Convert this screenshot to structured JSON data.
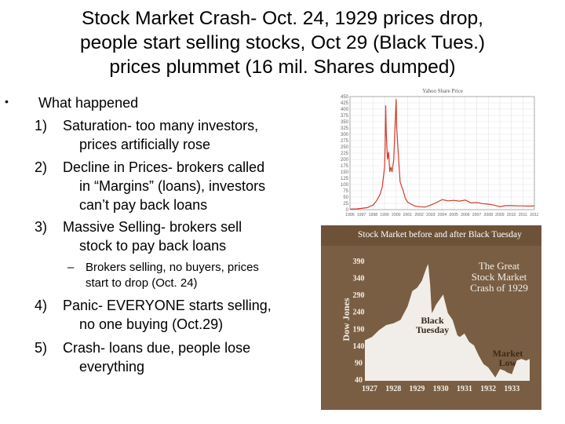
{
  "title": {
    "line1": "Stock Market Crash- Oct. 24, 1929 prices drop,",
    "line2": "people start selling stocks, Oct 29 (Black Tues.)",
    "line3": "prices plummet (16 mil. Shares dumped)"
  },
  "body": {
    "bullet_symbol": "•",
    "heading": "What happened",
    "items": [
      {
        "num": "1)",
        "lines": [
          "Saturation- too many investors,",
          "prices artificially rose"
        ]
      },
      {
        "num": "2)",
        "lines": [
          "Decline in Prices- brokers called",
          "in “Margins” (loans), investors",
          "can’t pay back loans"
        ]
      },
      {
        "num": "3)",
        "lines": [
          "Massive Selling- brokers sell",
          "stock to pay back loans"
        ]
      },
      {
        "num": "4)",
        "lines": [
          "Panic- EVERYONE starts selling,",
          "no one buying (Oct.29)"
        ]
      },
      {
        "num": "5)",
        "lines": [
          "Crash- loans due, people lose",
          "everything"
        ]
      }
    ],
    "sub_item": {
      "dash": "–",
      "lines": [
        "Brokers selling, no buyers, prices",
        "start to drop (Oct. 24)"
      ]
    }
  },
  "chart_data": [
    {
      "type": "line",
      "title": "Yahoo Share Price",
      "x": [
        "1996",
        "1997",
        "1998",
        "1999",
        "2000",
        "2001",
        "2002",
        "2003",
        "2004",
        "2005",
        "2006",
        "2007",
        "2008",
        "2009",
        "2010",
        "2011",
        "2012"
      ],
      "ylim": [
        0,
        450
      ],
      "yticks": [
        0,
        25,
        50,
        75,
        100,
        125,
        150,
        175,
        200,
        225,
        250,
        275,
        300,
        325,
        350,
        375,
        400,
        425,
        450
      ],
      "series": [
        {
          "color": "#d23c28",
          "points": [
            [
              1996.0,
              2
            ],
            [
              1996.6,
              3
            ],
            [
              1997.0,
              5
            ],
            [
              1997.5,
              8
            ],
            [
              1998.0,
              18
            ],
            [
              1998.3,
              35
            ],
            [
              1998.6,
              60
            ],
            [
              1998.8,
              90
            ],
            [
              1999.0,
              170
            ],
            [
              1999.05,
              250
            ],
            [
              1999.1,
              415
            ],
            [
              1999.15,
              300
            ],
            [
              1999.25,
              200
            ],
            [
              1999.35,
              230
            ],
            [
              1999.45,
              150
            ],
            [
              1999.55,
              170
            ],
            [
              1999.65,
              150
            ],
            [
              1999.8,
              200
            ],
            [
              1999.92,
              350
            ],
            [
              2000.0,
              440
            ],
            [
              2000.05,
              330
            ],
            [
              2000.15,
              250
            ],
            [
              2000.25,
              180
            ],
            [
              2000.35,
              110
            ],
            [
              2000.5,
              90
            ],
            [
              2000.65,
              70
            ],
            [
              2000.8,
              45
            ],
            [
              2001.0,
              30
            ],
            [
              2001.3,
              22
            ],
            [
              2001.6,
              15
            ],
            [
              2002.0,
              12
            ],
            [
              2002.5,
              10
            ],
            [
              2003.0,
              18
            ],
            [
              2003.5,
              28
            ],
            [
              2004.0,
              40
            ],
            [
              2004.5,
              35
            ],
            [
              2005.0,
              37
            ],
            [
              2005.5,
              34
            ],
            [
              2006.0,
              38
            ],
            [
              2006.5,
              27
            ],
            [
              2007.0,
              28
            ],
            [
              2007.5,
              24
            ],
            [
              2008.0,
              22
            ],
            [
              2008.5,
              18
            ],
            [
              2009.0,
              12
            ],
            [
              2009.5,
              16
            ],
            [
              2010.0,
              16
            ],
            [
              2010.5,
              15
            ],
            [
              2011.0,
              15
            ],
            [
              2011.5,
              14
            ],
            [
              2012.0,
              15
            ]
          ]
        }
      ]
    },
    {
      "type": "area",
      "title": "Stock Market before and after Black Tuesday",
      "ylabel": "Dow Jones",
      "x": [
        "1927",
        "1928",
        "1929",
        "1930",
        "1931",
        "1932",
        "1933"
      ],
      "ylim": [
        40,
        390
      ],
      "yticks": [
        40,
        90,
        140,
        190,
        240,
        290,
        340,
        390
      ],
      "annotations": [
        "The Great",
        "Stock Market",
        "Crash of 1929",
        "Black",
        "Tuesday",
        "Market",
        "Low"
      ],
      "series": [
        {
          "color": "#f1eee9",
          "points": [
            [
              1927.0,
              155
            ],
            [
              1927.3,
              165
            ],
            [
              1927.6,
              185
            ],
            [
              1927.9,
              200
            ],
            [
              1928.2,
              205
            ],
            [
              1928.5,
              215
            ],
            [
              1928.8,
              255
            ],
            [
              1929.0,
              300
            ],
            [
              1929.2,
              310
            ],
            [
              1929.4,
              330
            ],
            [
              1929.6,
              370
            ],
            [
              1929.67,
              380
            ],
            [
              1929.75,
              320
            ],
            [
              1929.82,
              235
            ],
            [
              1929.9,
              245
            ],
            [
              1930.0,
              260
            ],
            [
              1930.2,
              280
            ],
            [
              1930.3,
              290
            ],
            [
              1930.5,
              235
            ],
            [
              1930.7,
              215
            ],
            [
              1930.9,
              170
            ],
            [
              1931.0,
              165
            ],
            [
              1931.2,
              175
            ],
            [
              1931.4,
              150
            ],
            [
              1931.6,
              140
            ],
            [
              1931.8,
              110
            ],
            [
              1932.0,
              85
            ],
            [
              1932.2,
              75
            ],
            [
              1932.5,
              45
            ],
            [
              1932.7,
              70
            ],
            [
              1932.9,
              65
            ],
            [
              1933.0,
              60
            ],
            [
              1933.2,
              55
            ],
            [
              1933.4,
              95
            ],
            [
              1933.6,
              100
            ],
            [
              1933.8,
              95
            ],
            [
              1933.95,
              100
            ]
          ]
        }
      ]
    }
  ]
}
